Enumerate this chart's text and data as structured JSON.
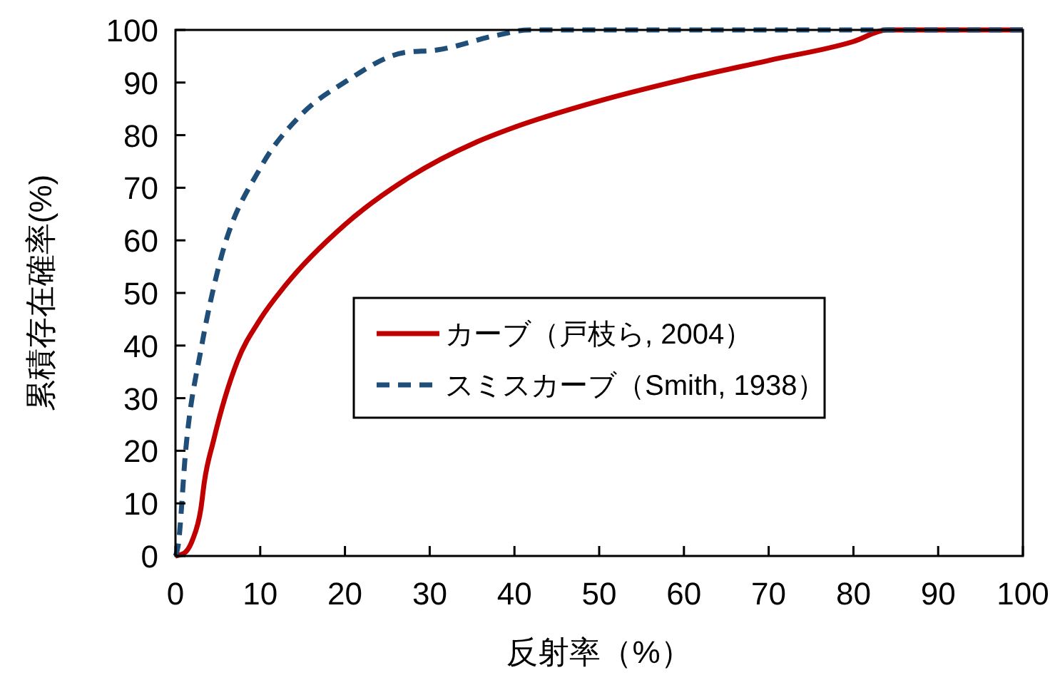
{
  "chart_data": {
    "type": "line",
    "xlabel": "反射率（%）",
    "ylabel": "累積存在確率(%)",
    "xlim": [
      0,
      100
    ],
    "ylim": [
      0,
      100
    ],
    "xticks": [
      0,
      10,
      20,
      30,
      40,
      50,
      60,
      70,
      80,
      90,
      100
    ],
    "yticks": [
      0,
      10,
      20,
      30,
      40,
      50,
      60,
      70,
      80,
      90,
      100
    ],
    "grid": false,
    "legend": "right",
    "series": [
      {
        "name": "カーブ（戸枝ら, 2004）",
        "color": "#c00000",
        "line_style": "solid",
        "x": [
          0,
          1,
          2,
          3,
          3.4,
          4.5,
          7.3,
          10,
          13,
          20,
          27.6,
          35.4,
          40,
          50,
          60,
          70,
          80,
          84,
          100
        ],
        "values": [
          0,
          0.5,
          3,
          9,
          14,
          22,
          37,
          45,
          51.5,
          63,
          72,
          78.6,
          81.5,
          86.5,
          90.6,
          94.2,
          97.8,
          100,
          100
        ]
      },
      {
        "name": "スミスカーブ（Smith, 1938）",
        "color": "#1f4e79",
        "line_style": "dashed",
        "x": [
          0,
          0.3,
          1.2,
          3.1,
          5.1,
          10.1,
          14.6,
          20.2,
          27,
          30.9,
          37.7,
          41.7,
          100
        ],
        "values": [
          0,
          1.8,
          20,
          40,
          55,
          74,
          83.5,
          90.3,
          95.7,
          96.2,
          98.9,
          100,
          100
        ]
      }
    ]
  }
}
